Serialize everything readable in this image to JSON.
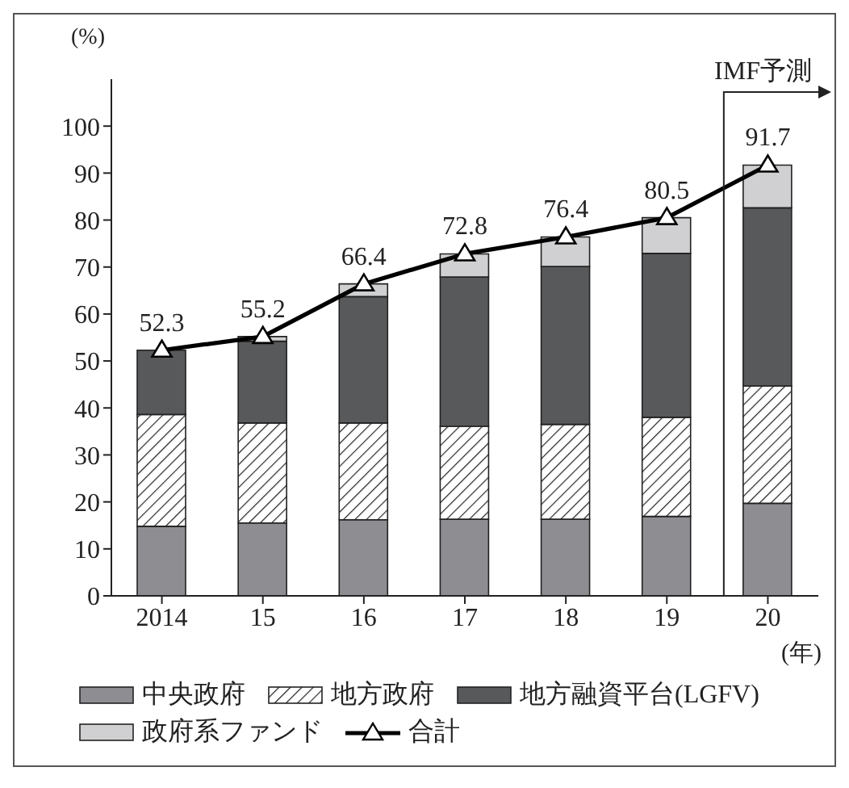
{
  "chart_data": {
    "type": "bar",
    "stacked": true,
    "ylabel": "(%)",
    "xlabel": "(年)",
    "categories": [
      "2014",
      "15",
      "16",
      "17",
      "18",
      "19",
      "20"
    ],
    "series": [
      {
        "name": "中央政府",
        "color": "#8e8e92",
        "values": [
          14.8,
          15.5,
          16.2,
          16.3,
          16.3,
          16.9,
          19.7
        ]
      },
      {
        "name": "地方政府",
        "color": "#222222",
        "values": [
          23.8,
          21.3,
          20.6,
          19.8,
          20.2,
          21.1,
          25.0
        ]
      },
      {
        "name": "地方融資平台(LGFV)",
        "color": "#58595b",
        "values": [
          13.7,
          17.4,
          26.9,
          31.8,
          33.6,
          34.9,
          37.9
        ]
      },
      {
        "name": "政府系ファンド",
        "color": "#d0d0d2",
        "values": [
          null,
          1.0,
          2.7,
          4.9,
          6.3,
          7.6,
          9.1
        ]
      },
      {
        "name": "合計",
        "type": "line",
        "color": "#000000",
        "marker": "triangle",
        "values": [
          52.3,
          55.2,
          66.4,
          72.8,
          76.4,
          80.5,
          91.7
        ],
        "value_labels": [
          "52.3",
          "55.2",
          "66.4",
          "72.8",
          "76.4",
          "80.5",
          "91.7"
        ]
      }
    ],
    "ylim": [
      0,
      110
    ],
    "yticks": [
      0,
      10,
      20,
      30,
      40,
      50,
      60,
      70,
      80,
      90,
      100
    ],
    "grid": false,
    "legend": "bottom",
    "annotations": [
      "IMF予測"
    ]
  }
}
